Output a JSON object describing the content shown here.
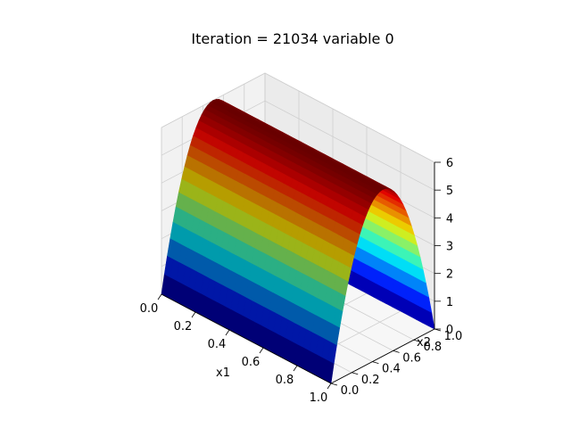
{
  "chart_data": {
    "type": "surface3d",
    "title": "Iteration = 21034 variable 0",
    "xlabel": "x1",
    "ylabel": "x2",
    "zlabel": "",
    "x_ticks": [
      "0.0",
      "0.2",
      "0.4",
      "0.6",
      "0.8",
      "1.0"
    ],
    "y_ticks": [
      "0.0",
      "0.2",
      "0.4",
      "0.6",
      "0.8",
      "1.0"
    ],
    "z_ticks": [
      "0",
      "1",
      "2",
      "3",
      "4",
      "5",
      "6"
    ],
    "xlim": [
      0,
      1
    ],
    "ylim": [
      0,
      1
    ],
    "zlim": [
      0,
      6
    ],
    "surface": {
      "description_formula": "z = 24 * x2 * (1 - x2)",
      "peak_z": 6.0,
      "peak_at_x2": 0.5,
      "colormap": "jet",
      "grid_samples_x1": [
        0.0,
        0.1,
        0.2,
        0.3,
        0.4,
        0.5,
        0.6,
        0.7,
        0.8,
        0.9,
        1.0
      ],
      "grid_samples_x2": [
        0.0,
        0.1,
        0.2,
        0.3,
        0.4,
        0.5,
        0.6,
        0.7,
        0.8,
        0.9,
        1.0
      ]
    },
    "grid": true,
    "pane_color": "#f2f2f2",
    "colors": {
      "low": "#1010c8",
      "mid": "#7dff7a",
      "high": "#8b0000"
    }
  }
}
